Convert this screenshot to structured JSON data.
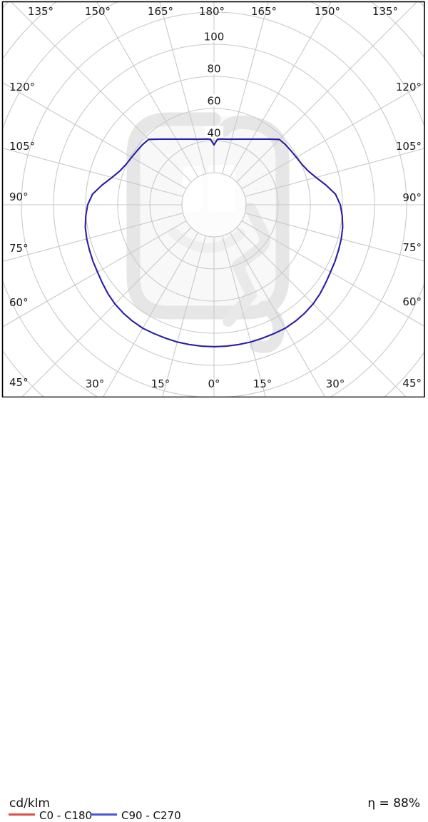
{
  "page": {
    "background": "#ffffff"
  },
  "footer": {
    "unit_label": "cd/klm",
    "efficiency": "η = 88%"
  },
  "legend": {
    "items": [
      {
        "label": "C0 - C180",
        "color": "#dd4f4b"
      },
      {
        "label": "C90 - C270",
        "color": "#4c55d8"
      }
    ]
  },
  "watermark": {
    "name": "brand-logo-watermark",
    "color": "#e6e6e6"
  },
  "chart_data": {
    "type": "line",
    "polar": true,
    "description": "Polar luminous intensity distribution curve of a luminaire, 0° at nadir (bottom), 180° at zenith (top), values in cd/klm",
    "units": "cd/klm",
    "efficiency": "η = 88%",
    "radial_axis": {
      "ring_step": 20,
      "rings": [
        20,
        40,
        60,
        80,
        100,
        120,
        140,
        160,
        180
      ],
      "tick_labels": [
        "40",
        "60",
        "80",
        "100"
      ]
    },
    "angular_axis": {
      "spoke_step_deg": 15,
      "zero_position": "bottom",
      "labels": {
        "top": [
          "135°",
          "150°",
          "165°",
          "180°",
          "165°",
          "150°",
          "135°"
        ],
        "left": [
          "120°",
          "105°",
          "90°",
          "75°",
          "60°",
          "45°"
        ],
        "right": [
          "120°",
          "105°",
          "90°",
          "75°",
          "60°",
          "45°"
        ],
        "bottom": [
          "30°",
          "15°",
          "0°",
          "15°",
          "30°"
        ]
      }
    },
    "gamma_deg": [
      0,
      5,
      10,
      15,
      20,
      25,
      30,
      35,
      40,
      45,
      50,
      55,
      60,
      65,
      70,
      75,
      80,
      85,
      90,
      95,
      100,
      105,
      110,
      115,
      120,
      125,
      130,
      135,
      140,
      145,
      150,
      155,
      160,
      165,
      170,
      174,
      177,
      180
    ],
    "series": [
      {
        "name": "C0 - C180",
        "color": "#dd4f4b",
        "note": "coincides with C90 - C270 curve (drawn underneath)",
        "values": [
          88.4,
          88.4,
          88.4,
          88.5,
          88.4,
          88.5,
          88.8,
          88.5,
          88.0,
          87.3,
          86.2,
          84.9,
          83.8,
          83.2,
          82.6,
          82.1,
          81.4,
          80.2,
          78.7,
          76.0,
          70.8,
          65.8,
          62.2,
          60.2,
          59.2,
          58.6,
          58.2,
          57.6,
          53.4,
          49.9,
          47.2,
          45.1,
          43.5,
          42.3,
          41.5,
          41.2,
          40.8,
          37.3
        ]
      },
      {
        "name": "C90 - C270",
        "color": "#2121ae",
        "values": [
          88.4,
          88.4,
          88.4,
          88.5,
          88.4,
          88.5,
          88.8,
          88.5,
          88.0,
          87.3,
          86.2,
          84.9,
          83.8,
          83.2,
          82.6,
          82.1,
          81.4,
          80.2,
          78.7,
          76.0,
          70.8,
          65.8,
          62.2,
          60.2,
          59.2,
          58.6,
          58.2,
          57.6,
          53.4,
          49.9,
          47.2,
          45.1,
          43.5,
          42.3,
          41.5,
          41.2,
          40.8,
          37.3
        ]
      }
    ],
    "grid_color": "#c9c9c9",
    "border_color": "#000000"
  }
}
